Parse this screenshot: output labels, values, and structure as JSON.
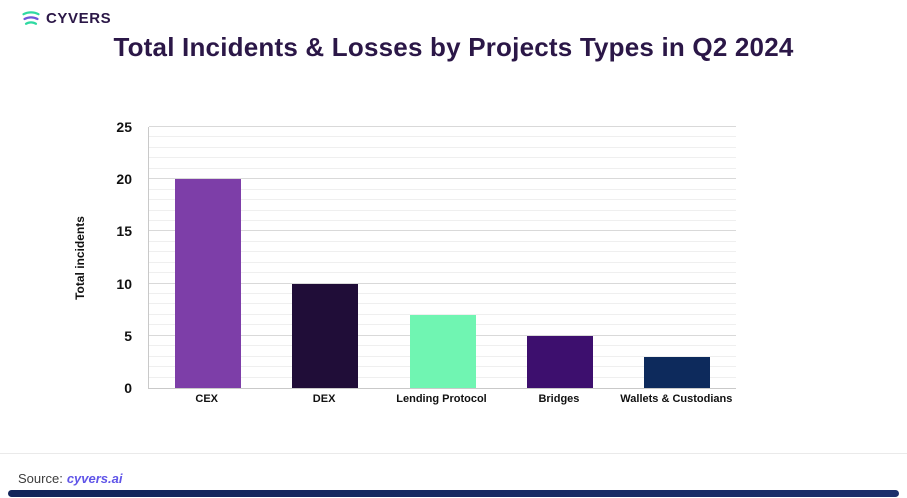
{
  "brand": {
    "name": "CYVERS",
    "icon": "waves-logo-icon",
    "icon_colors": [
      "#2fd9a2",
      "#6d56d8",
      "#2fd9a2"
    ]
  },
  "title": "Total Incidents & Losses by Projects Types in Q2 2024",
  "colors": {
    "title_text": "#2b1747",
    "tick_text": "#111111",
    "grid_major": "#d9d9d9",
    "grid_minor": "#efefef",
    "axis_line": "#c9c9c9",
    "source_text": "#3d3d3d",
    "source_link": "#6055e8",
    "accent_bar": "#13255a",
    "background": "#ffffff"
  },
  "chart_data": {
    "type": "bar",
    "title": "Total Incidents & Losses by Projects Types in Q2 2024",
    "categories": [
      "CEX",
      "DEX",
      "Lending Protocol",
      "Bridges",
      "Wallets & Custodians"
    ],
    "values": [
      20,
      10,
      7,
      5,
      3
    ],
    "bar_colors": [
      "#7d3ea8",
      "#200d38",
      "#70f5b2",
      "#3d0f6e",
      "#0d2a5c"
    ],
    "xlabel": "",
    "ylabel": "Total incidents",
    "ylim": [
      0,
      25
    ],
    "yticks": [
      0,
      5,
      10,
      15,
      20,
      25
    ],
    "minor_grid_step": 1,
    "major_grid_step": 5,
    "grid": true,
    "legend_position": "none"
  },
  "source": {
    "label": "Source:",
    "link": "cyvers.ai"
  }
}
